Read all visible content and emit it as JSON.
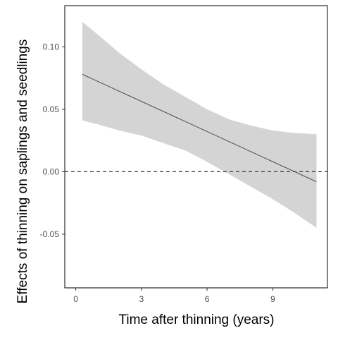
{
  "chart_data": {
    "type": "line",
    "title": "",
    "xlabel": "Time after thinning (years)",
    "ylabel": "Effects of thinning on saplings and seedlings",
    "xlim": [
      -0.5,
      11.5
    ],
    "ylim": [
      -0.093,
      0.133
    ],
    "x_ticks": [
      0,
      3,
      6,
      9
    ],
    "x_tick_labels": [
      "0",
      "3",
      "6",
      "9"
    ],
    "y_ticks": [
      -0.05,
      0.0,
      0.05,
      0.1
    ],
    "y_tick_labels": [
      "-0.05",
      "0.00",
      "0.05",
      "0.10"
    ],
    "grid": false,
    "reference_line": {
      "y": 0.0,
      "style": "dashed"
    },
    "series": [
      {
        "x": [
          0.3,
          11.0
        ],
        "y": [
          0.078,
          -0.008
        ],
        "lower": [
          [
            0.3,
            0.041
          ],
          [
            1.0,
            0.038
          ],
          [
            2.0,
            0.033
          ],
          [
            3.0,
            0.029
          ],
          [
            4.0,
            0.023
          ],
          [
            5.0,
            0.017
          ],
          [
            6.0,
            0.008
          ],
          [
            7.0,
            -0.002
          ],
          [
            8.0,
            -0.012
          ],
          [
            9.0,
            -0.022
          ],
          [
            10.0,
            -0.033
          ],
          [
            11.0,
            -0.045
          ]
        ],
        "upper": [
          [
            0.3,
            0.12
          ],
          [
            1.0,
            0.11
          ],
          [
            2.0,
            0.095
          ],
          [
            3.0,
            0.082
          ],
          [
            4.0,
            0.07
          ],
          [
            5.0,
            0.06
          ],
          [
            6.0,
            0.05
          ],
          [
            7.0,
            0.042
          ],
          [
            8.0,
            0.037
          ],
          [
            9.0,
            0.033
          ],
          [
            10.0,
            0.031
          ],
          [
            11.0,
            0.03
          ]
        ]
      }
    ],
    "colors": {
      "ribbon": "#d4d4d4",
      "line": "#555555",
      "reference": "#333333",
      "frame": "#000000"
    }
  }
}
